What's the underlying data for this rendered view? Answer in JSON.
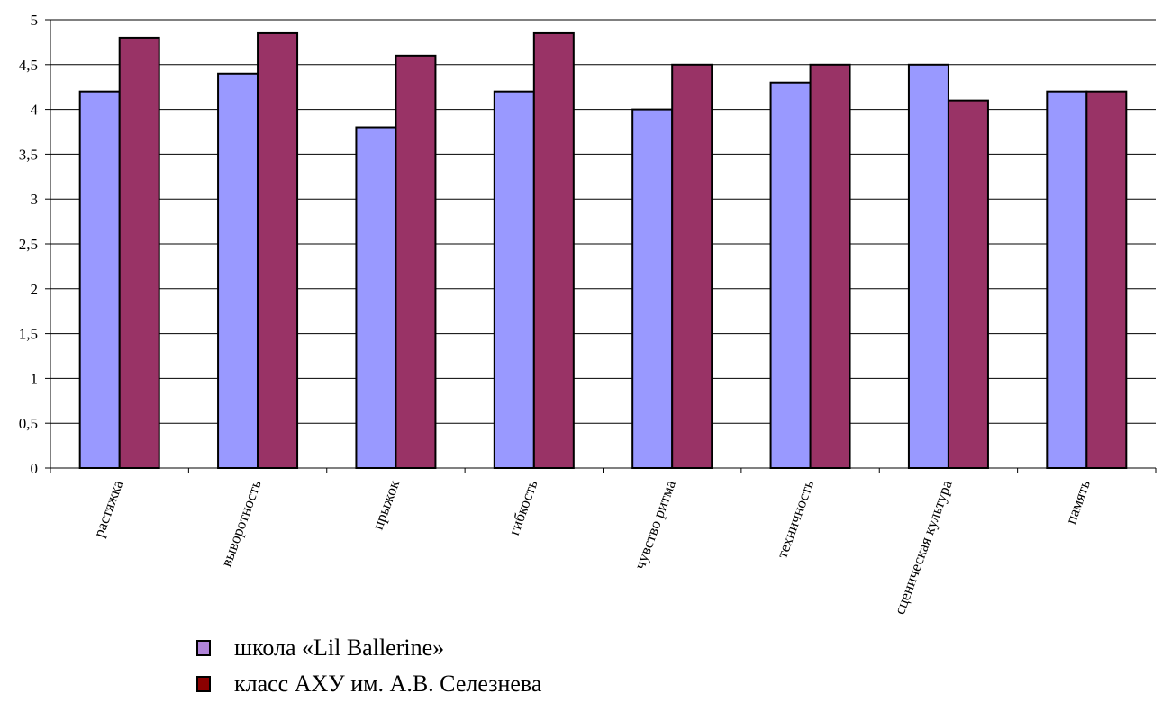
{
  "chart_data": {
    "type": "bar",
    "categories": [
      "растяжка",
      "выворотность",
      "прыжок",
      "гибкость",
      "чувство ритма",
      "техничность",
      "сценическая культура",
      "память"
    ],
    "series": [
      {
        "name": "школа «Lil Ballerine»",
        "values": [
          4.2,
          4.4,
          3.8,
          4.2,
          4.0,
          4.3,
          4.5,
          4.2
        ],
        "color": "#9999ff",
        "legend_color": "#b084d9"
      },
      {
        "name": "класс АХУ им. А.В. Селезнева",
        "values": [
          4.8,
          4.85,
          4.6,
          4.85,
          4.5,
          4.5,
          4.1,
          4.2
        ],
        "color": "#993366",
        "legend_color": "#8b0000"
      }
    ],
    "ylim": [
      0,
      5
    ],
    "yticks": [
      "0",
      "0,5",
      "1",
      "1,5",
      "2",
      "2,5",
      "3",
      "3,5",
      "4",
      "4,5",
      "5"
    ],
    "grid": true,
    "legend_position": "bottom-left"
  }
}
